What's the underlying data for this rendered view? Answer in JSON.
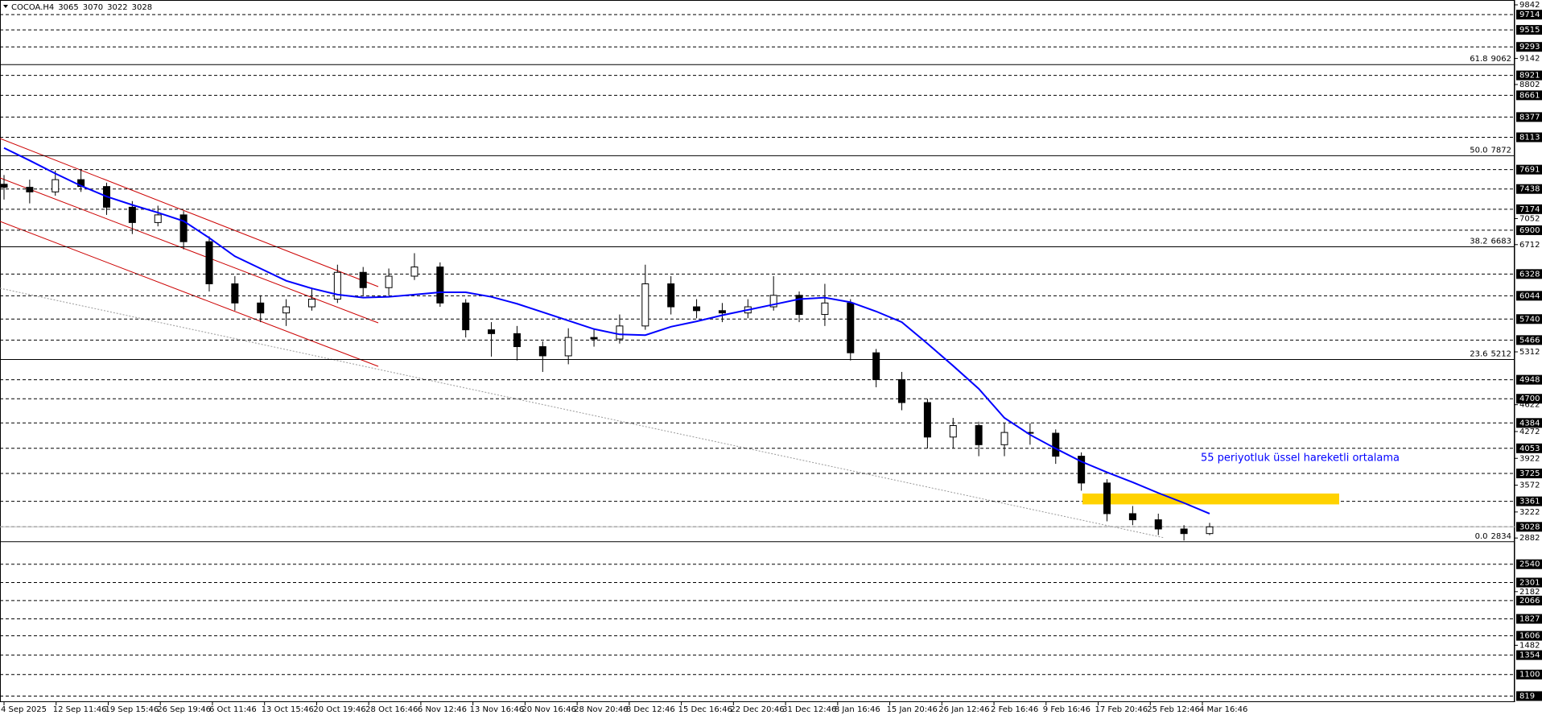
{
  "chart_data": {
    "type": "candlestick",
    "symbol": "COCOA.H4",
    "quote": [
      3065,
      3070,
      3022,
      3028
    ],
    "ylim": [
      740,
      9905
    ],
    "yticks": [
      9842,
      9142,
      8802,
      7052,
      6712,
      5312,
      4622,
      4272,
      3922,
      3572,
      3222,
      2882,
      2182,
      1482
    ],
    "levels": [
      9714,
      9515,
      9293,
      8921,
      8661,
      8377,
      8113,
      7691,
      7438,
      7174,
      6900,
      6328,
      6044,
      5740,
      5466,
      4948,
      4700,
      4384,
      4053,
      3725,
      3361,
      3028,
      2540,
      2301,
      2066,
      1827,
      1606,
      1354,
      1100,
      819
    ],
    "fib_levels": [
      {
        "ratio": "61.8",
        "value": 9062
      },
      {
        "ratio": "50.0",
        "value": 7872
      },
      {
        "ratio": "38.2",
        "value": 6683
      },
      {
        "ratio": "23.6",
        "value": 5212
      },
      {
        "ratio": "0.0",
        "value": 2834
      }
    ],
    "time_labels": [
      "4 Sep 2025",
      "12 Sep 11:46",
      "19 Sep 15:46",
      "26 Sep 19:46",
      "6 Oct 11:46",
      "13 Oct 15:46",
      "20 Oct 19:46",
      "28 Oct 16:46",
      "6 Nov 12:46",
      "13 Nov 16:46",
      "20 Nov 16:46",
      "28 Nov 20:46",
      "8 Dec 12:46",
      "15 Dec 16:46",
      "22 Dec 20:46",
      "31 Dec 12:46",
      "8 Jan 16:46",
      "15 Jan 20:46",
      "26 Jan 12:46",
      "2 Feb 16:46",
      "9 Feb 16:46",
      "17 Feb 20:46",
      "25 Feb 12:46",
      "4 Mar 16:46"
    ],
    "open": [
      7500,
      7460,
      7400,
      7560,
      7470,
      7200,
      7000,
      7100,
      6750,
      6200,
      5950,
      5820,
      5900,
      6000,
      6350,
      6150,
      6300,
      6420,
      5950,
      5600,
      5550,
      5380,
      5260,
      5500,
      5480,
      5650,
      6200,
      5900,
      5850,
      5820,
      5900,
      6050,
      5800,
      5950,
      5300,
      4950,
      4650,
      4200,
      4350,
      4100,
      4260,
      4250,
      3950,
      3600,
      3200,
      3120,
      3000,
      2940
    ],
    "high": [
      7620,
      7560,
      7680,
      7700,
      7520,
      7280,
      7220,
      7150,
      6820,
      6300,
      6050,
      6000,
      6150,
      6450,
      6420,
      6400,
      6600,
      6480,
      6000,
      5700,
      5650,
      5450,
      5620,
      5600,
      5800,
      6450,
      6300,
      6000,
      5950,
      6000,
      6300,
      6100,
      6200,
      6000,
      5350,
      5050,
      4700,
      4450,
      4400,
      4380,
      4380,
      4300,
      4000,
      3650,
      3300,
      3200,
      3050,
      3080
    ],
    "low": [
      7300,
      7250,
      7350,
      7400,
      7100,
      6850,
      6950,
      6650,
      6100,
      5850,
      5700,
      5650,
      5850,
      5950,
      6050,
      6050,
      6250,
      5900,
      5500,
      5250,
      5200,
      5050,
      5150,
      5380,
      5420,
      5600,
      5800,
      5750,
      5700,
      5750,
      5850,
      5700,
      5650,
      5200,
      4850,
      4550,
      4050,
      4050,
      3950,
      3950,
      4100,
      3850,
      3500,
      3100,
      3050,
      2920,
      2850,
      2920
    ],
    "close": [
      7460,
      7400,
      7560,
      7470,
      7200,
      7000,
      7100,
      6750,
      6200,
      5950,
      5820,
      5900,
      6000,
      6350,
      6150,
      6300,
      6420,
      5950,
      5600,
      5550,
      5380,
      5260,
      5500,
      5480,
      5650,
      6200,
      5900,
      5850,
      5820,
      5900,
      6050,
      5800,
      5950,
      5300,
      4950,
      4650,
      4200,
      4350,
      4100,
      4260,
      4250,
      3950,
      3600,
      3200,
      3120,
      3000,
      2940,
      3028
    ],
    "ema": {
      "label": "55 periyotluk üssel hareketli ortalama",
      "color": "#0000ff",
      "values": [
        7974,
        7810,
        7640,
        7480,
        7340,
        7230,
        7130,
        7020,
        6800,
        6560,
        6400,
        6240,
        6140,
        6060,
        6020,
        6030,
        6060,
        6090,
        6090,
        6030,
        5940,
        5830,
        5720,
        5610,
        5540,
        5530,
        5640,
        5710,
        5790,
        5860,
        5930,
        6000,
        6020,
        5960,
        5840,
        5700,
        5420,
        5130,
        4830,
        4450,
        4230,
        4050,
        3880,
        3740,
        3610,
        3470,
        3340,
        3200
      ]
    },
    "zone": {
      "from": 3321,
      "to": 3463,
      "color": "#ffd200"
    }
  }
}
